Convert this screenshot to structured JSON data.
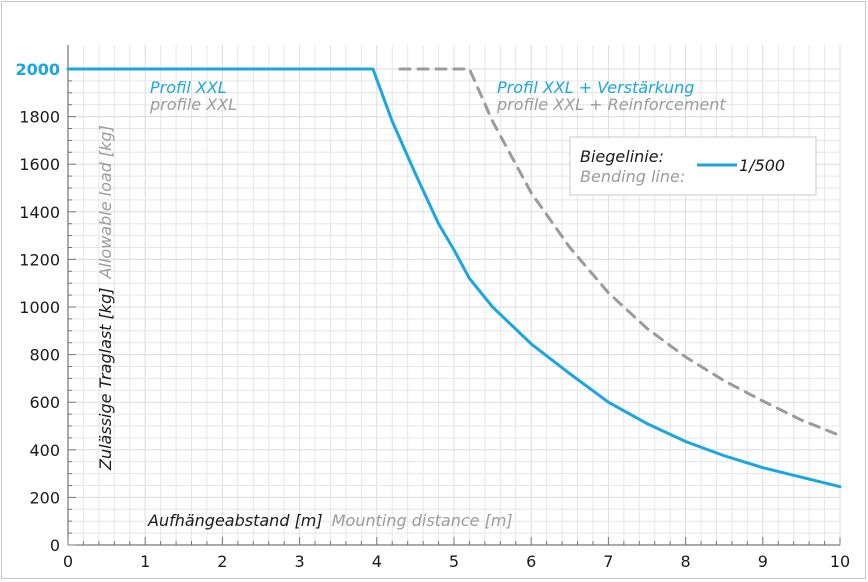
{
  "chart_data": {
    "type": "line",
    "xlim": [
      0,
      10
    ],
    "ylim": [
      0,
      2000
    ],
    "x_ticks": [
      "0",
      "1",
      "2",
      "3",
      "4",
      "5",
      "6",
      "7",
      "8",
      "9",
      "10"
    ],
    "y_ticks": [
      "0",
      "200",
      "400",
      "600",
      "800",
      "1000",
      "1200",
      "1400",
      "1600",
      "1800",
      "2000"
    ],
    "highlight_y_tick": "2000",
    "grid": true,
    "xlabel": {
      "primary": "Aufhängeabstand [m]",
      "secondary": "Mounting distance [m]"
    },
    "ylabel": {
      "primary": "Zulässige Traglast [kg]",
      "secondary": "Allowable load [kg]"
    },
    "colors": {
      "profile": "#1aa6de",
      "reinforced": "#9b9b9b",
      "grid": "#e6e6e6"
    },
    "series": [
      {
        "name": "Profil XXL",
        "name_secondary": "profile XXL",
        "style": "solid",
        "x": [
          0,
          3.95,
          4.2,
          4.5,
          4.8,
          5.0,
          5.2,
          5.5,
          6.0,
          6.5,
          7.0,
          7.5,
          8.0,
          8.5,
          9.0,
          9.5,
          10.0
        ],
        "y": [
          2000,
          2000,
          1780,
          1560,
          1350,
          1240,
          1120,
          1000,
          845,
          720,
          600,
          510,
          435,
          375,
          325,
          285,
          245
        ]
      },
      {
        "name": "Profil XXL + Verstärkung",
        "name_secondary": "profile XXL + Reinforcement",
        "style": "dashed",
        "x": [
          4.3,
          5.2,
          5.5,
          6.0,
          6.5,
          7.0,
          7.5,
          8.0,
          8.5,
          9.0,
          9.5,
          10.0
        ],
        "y": [
          2000,
          2000,
          1780,
          1480,
          1250,
          1060,
          910,
          790,
          690,
          605,
          525,
          460
        ]
      }
    ],
    "legend": {
      "title_primary": "Biegelinie:",
      "title_secondary": "Bending line:",
      "entry": "1/500",
      "position": "top-right"
    }
  }
}
